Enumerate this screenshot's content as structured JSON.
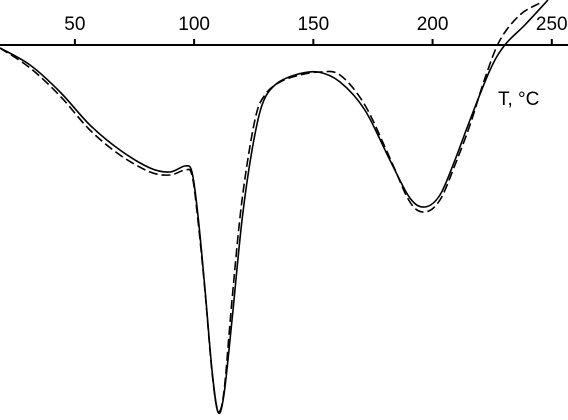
{
  "chart_data": {
    "type": "line",
    "xlabel": "T,  °C",
    "xlim": [
      18.6,
      256.8
    ],
    "ylim": [
      -375,
      45
    ],
    "xticks": [
      50,
      100,
      150,
      200,
      250
    ],
    "series": [
      {
        "color": "#000000",
        "style": "solid",
        "x": [
          18.6,
          31.2,
          43.8,
          56.3,
          68.9,
          81.5,
          89.9,
          96.2,
          99.1,
          101.6,
          104.6,
          107.5,
          110.0,
          112.5,
          115.9,
          120.1,
          124.3,
          128.5,
          133.9,
          142.3,
          151.9,
          161.2,
          171.6,
          182.1,
          190.5,
          196.8,
          203.1,
          209.4,
          215.7,
          224.1,
          230.3,
          238.7,
          248.4
        ],
        "values": [
          -3,
          -20,
          -47,
          -80,
          -105,
          -123,
          -127,
          -121,
          -127,
          -170,
          -245,
          -325,
          -367,
          -350,
          -275,
          -175,
          -105,
          -60,
          -40,
          -30,
          -27,
          -37,
          -65,
          -115,
          -153,
          -162,
          -150,
          -115,
          -75,
          -25,
          0,
          20,
          45
        ]
      },
      {
        "color": "#000000",
        "style": "dashed",
        "x": [
          18.6,
          31.2,
          43.8,
          56.3,
          68.9,
          81.5,
          89.9,
          96.2,
          99.1,
          101.6,
          104.6,
          107.5,
          110.0,
          112.5,
          115.9,
          120.1,
          125.5,
          129.7,
          136.0,
          144.4,
          152.8,
          161.2,
          171.6,
          182.1,
          190.5,
          196.8,
          203.1,
          209.4,
          215.7,
          222.0,
          228.3,
          236.6,
          245.0
        ],
        "values": [
          -3,
          -23,
          -51,
          -85,
          -110,
          -127,
          -130,
          -125,
          -130,
          -175,
          -247,
          -327,
          -365,
          -347,
          -255,
          -155,
          -75,
          -50,
          -37,
          -30,
          -27,
          -30,
          -60,
          -113,
          -157,
          -167,
          -155,
          -120,
          -80,
          -33,
          5,
          30,
          42
        ]
      }
    ]
  }
}
